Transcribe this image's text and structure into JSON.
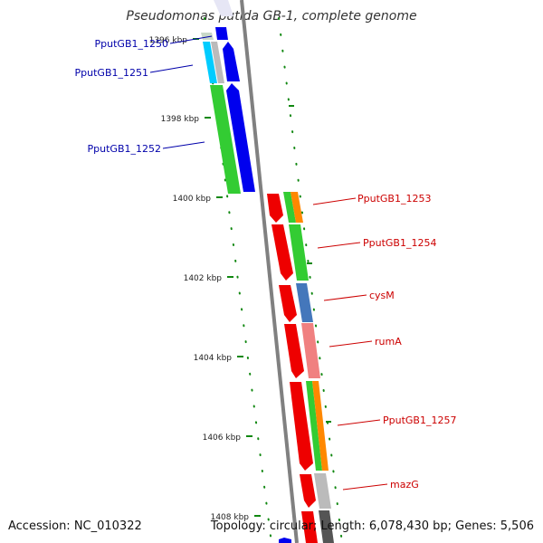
{
  "title": "Pseudomonas putida GB-1, complete genome",
  "accession_text": "Accession: NC_010322",
  "topology_text": "Topology: circular; Length: 6,078,430 bp; Genes: 5,506",
  "colors": {
    "forward_gene": "#0000ee",
    "reverse_gene": "#ee0000",
    "label_forward": "#0000aa",
    "label_reverse": "#cc0000",
    "backbone": "#808080",
    "tick": "#118811",
    "cog_green": "#33cc33",
    "cog_orange": "#ff8800",
    "cog_steelblue": "#4477bb",
    "cog_pink": "#f08080",
    "cog_gray": "#bbbbbb",
    "cog_cyan": "#00ccff"
  },
  "tick_labels": [
    "1396 kbp",
    "1398 kbp",
    "1400 kbp",
    "1402 kbp",
    "1404 kbp",
    "1406 kbp",
    "1408 kbp"
  ],
  "gene_labels": [
    "PputGB1_1250",
    "PputGB1_1251",
    "PputGB1_1252",
    "PputGB1_1253",
    "PputGB1_1254",
    "cysM",
    "rumA",
    "PputGB1_1257",
    "mazG"
  ]
}
